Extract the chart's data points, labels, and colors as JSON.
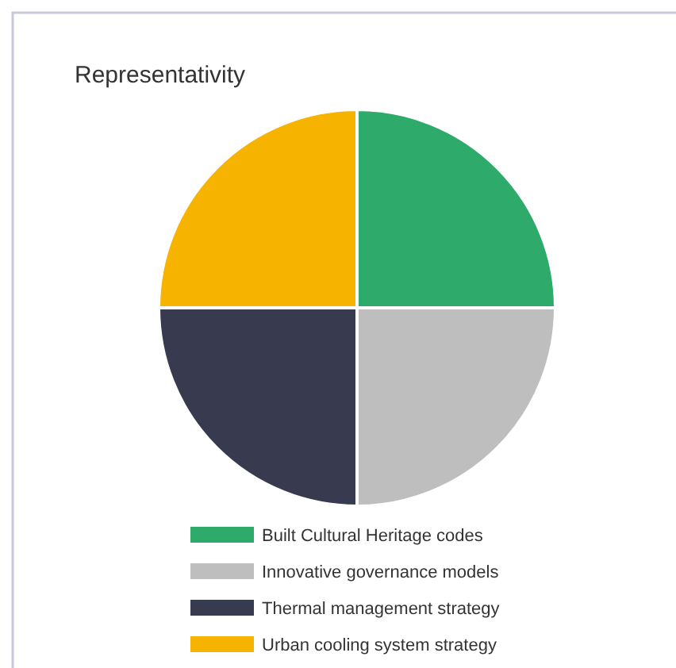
{
  "chart_data": {
    "type": "pie",
    "title": "Representativity",
    "categories": [
      "Built Cultural Heritage codes",
      "Innovative governance models",
      "Thermal management strategy",
      "Urban cooling system strategy"
    ],
    "values": [
      25,
      25,
      25,
      25
    ],
    "colors": [
      "#2eab6b",
      "#bebebe",
      "#383a4f",
      "#f6b400"
    ],
    "legend": "bottom"
  }
}
